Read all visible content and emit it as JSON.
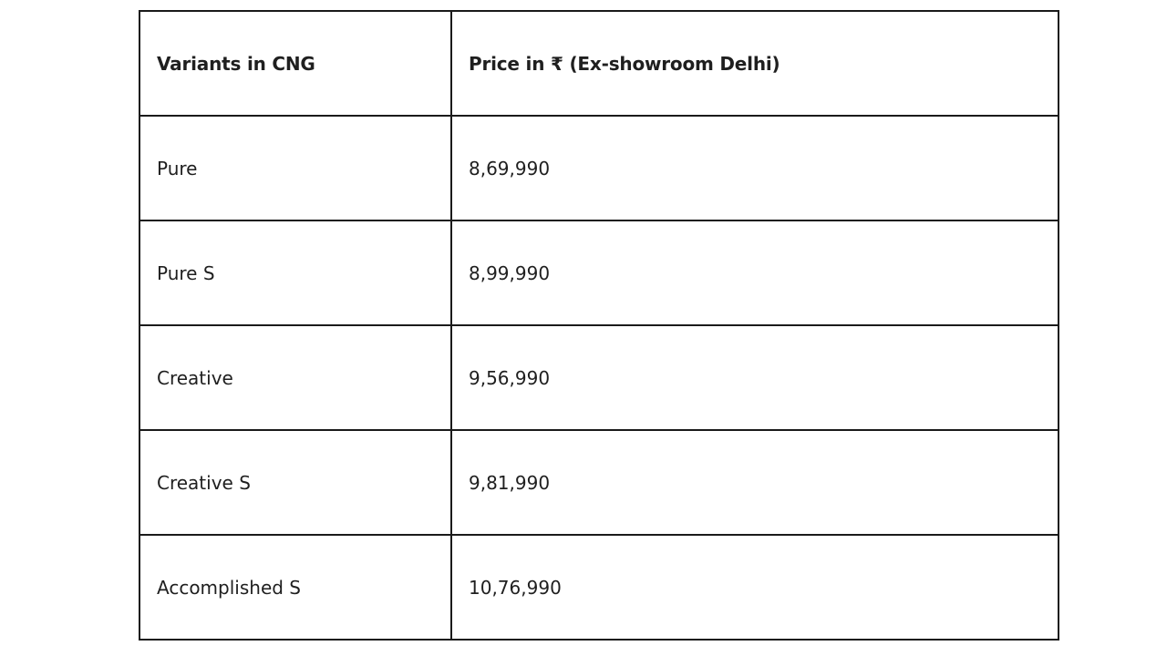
{
  "table": {
    "headers": [
      "Variants in CNG",
      "Price in ₹ (Ex-showroom Delhi)"
    ],
    "rows": [
      {
        "variant": "Pure",
        "price": "8,69,990"
      },
      {
        "variant": "Pure S",
        "price": "8,99,990"
      },
      {
        "variant": "Creative",
        "price": "9,56,990"
      },
      {
        "variant": "Creative S",
        "price": "9,81,990"
      },
      {
        "variant": "Accomplished S",
        "price": "10,76,990"
      }
    ]
  }
}
